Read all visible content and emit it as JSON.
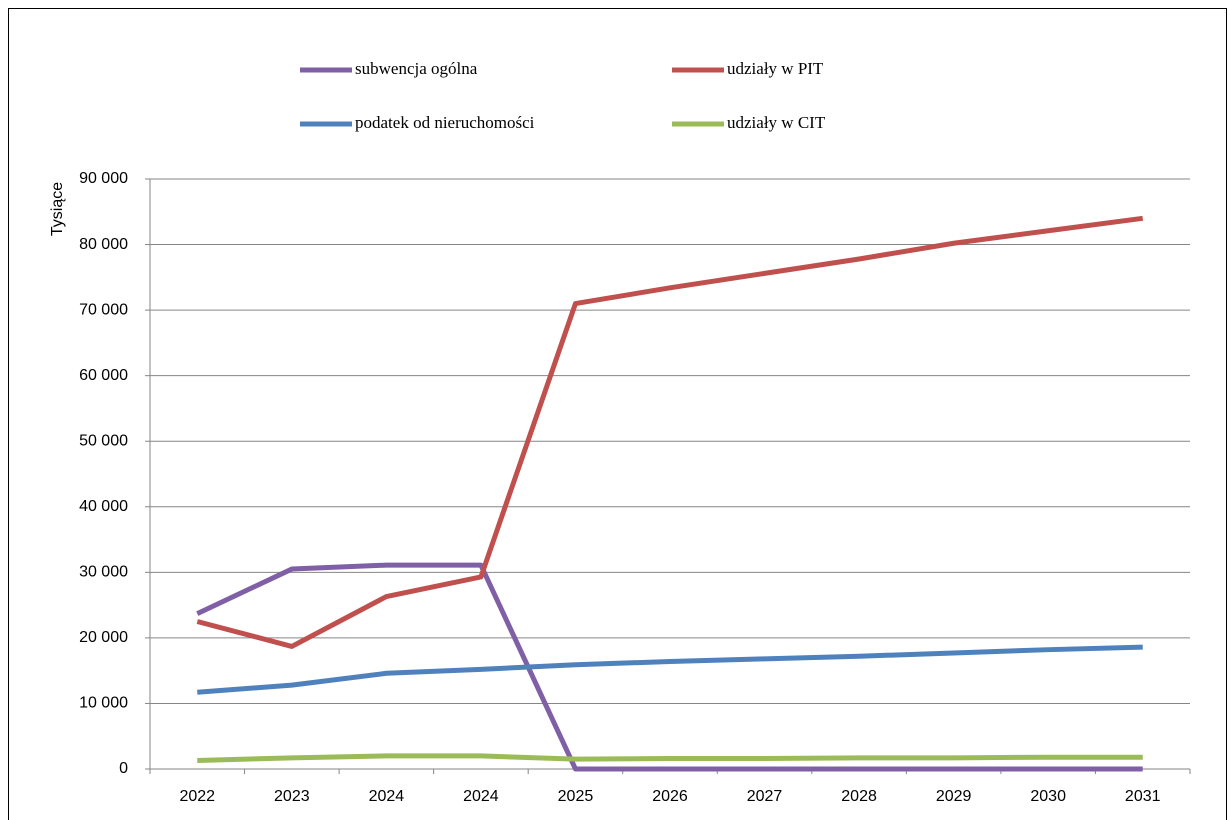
{
  "chart_data": {
    "type": "line",
    "ylabel": "Tysiące",
    "categories": [
      "2022",
      "2023",
      "2024",
      "2024",
      "2025",
      "2026",
      "2027",
      "2028",
      "2029",
      "2030",
      "2031"
    ],
    "series": [
      {
        "name": "subwencja ogólna",
        "color": "#7f5fa5",
        "values": [
          23700,
          30500,
          31100,
          31100,
          0,
          0,
          0,
          0,
          0,
          0,
          0
        ]
      },
      {
        "name": "udziały w PIT",
        "color": "#c0504d",
        "values": [
          22500,
          18700,
          26300,
          29300,
          71000,
          73400,
          75600,
          77800,
          80200,
          82100,
          84000
        ]
      },
      {
        "name": "podatek od nieruchomości",
        "color": "#4f81bd",
        "values": [
          11700,
          12800,
          14600,
          15200,
          15900,
          16400,
          16800,
          17200,
          17700,
          18200,
          18600
        ]
      },
      {
        "name": "udziały w CIT",
        "color": "#9bbb59",
        "values": [
          1300,
          1700,
          2000,
          2000,
          1500,
          1600,
          1600,
          1700,
          1700,
          1800,
          1800
        ]
      }
    ],
    "ylim": [
      0,
      90000
    ],
    "yticks": [
      0,
      {
        "value": 10000,
        "label": "10 000"
      },
      {
        "value": 20000,
        "label": "20 000"
      },
      {
        "value": 30000,
        "label": "30 000"
      },
      {
        "value": 40000,
        "label": "40 000"
      },
      {
        "value": 50000,
        "label": "50 000"
      },
      {
        "value": 60000,
        "label": "60 000"
      },
      {
        "value": 70000,
        "label": "70 000"
      },
      {
        "value": 80000,
        "label": "80 000"
      },
      {
        "value": 90000,
        "label": "90 000"
      }
    ],
    "grid": true,
    "legend": "top"
  }
}
